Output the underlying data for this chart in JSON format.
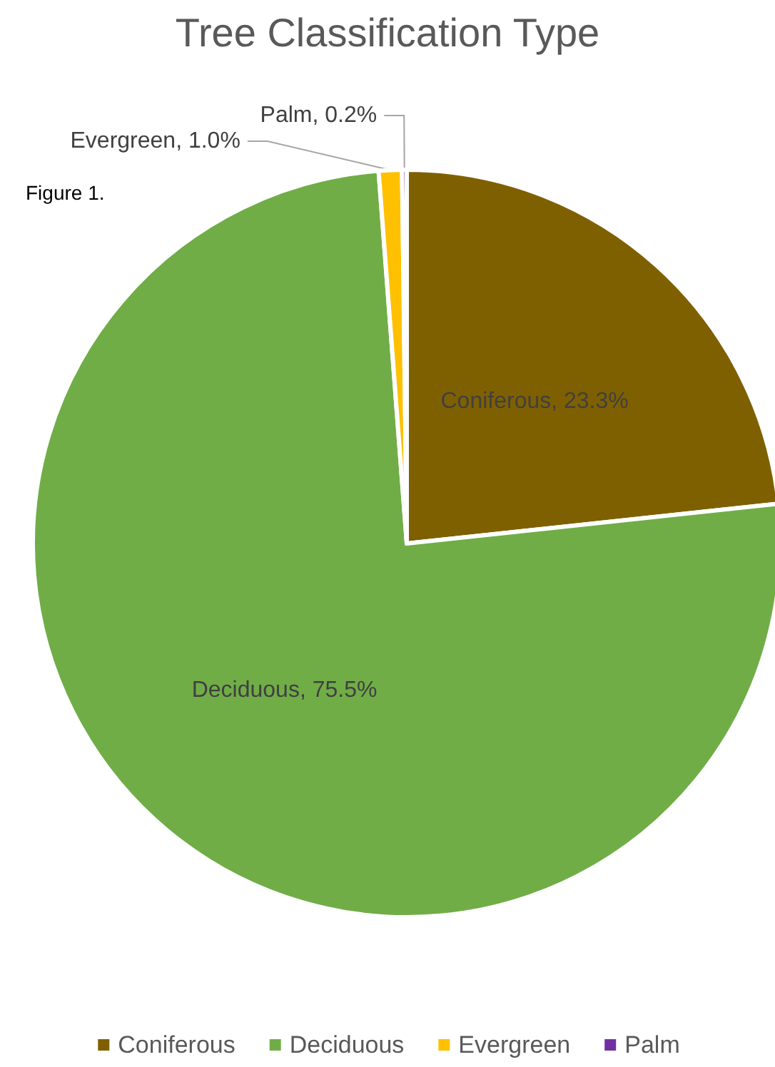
{
  "chart_data": {
    "type": "pie",
    "title": "Tree Classification Type",
    "annotations": [
      "Figure 1."
    ],
    "categories": [
      "Coniferous",
      "Deciduous",
      "Evergreen",
      "Palm"
    ],
    "values": [
      23.3,
      75.5,
      1.0,
      0.2
    ],
    "colors": [
      "#7f6000",
      "#70ad47",
      "#ffc000",
      "#7030a0"
    ],
    "value_labels": [
      "Coniferous, 23.3%",
      "Deciduous, 75.5%",
      "Evergreen, 1.0%",
      "Palm, 0.2%"
    ],
    "legend": "bottom"
  }
}
